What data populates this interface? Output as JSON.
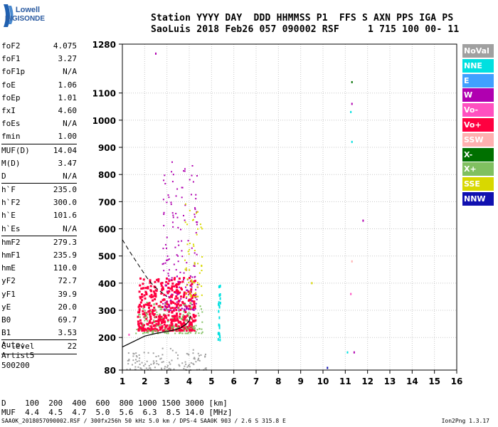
{
  "logo": {
    "line1": "Lowell",
    "line2": "DIGISONDE"
  },
  "header": {
    "line1": "Station YYYY DAY  DDD HHMMSS P1  FFS S AXN PPS IGA PS",
    "line2": "SaoLuis 2018 Feb26 057 090002 RSF     1 715 100 00- 11"
  },
  "params": [
    {
      "group": [
        {
          "name": "foF2",
          "value": "4.075"
        },
        {
          "name": "foF1",
          "value": "3.27"
        },
        {
          "name": "foF1p",
          "value": "N/A"
        },
        {
          "name": "foE",
          "value": "1.06"
        },
        {
          "name": "foEp",
          "value": "1.01"
        },
        {
          "name": "fxI",
          "value": "4.60"
        },
        {
          "name": "foEs",
          "value": "N/A"
        },
        {
          "name": "fmin",
          "value": "1.00"
        }
      ]
    },
    {
      "group": [
        {
          "name": "MUF(D)",
          "value": "14.04"
        },
        {
          "name": "M(D)",
          "value": "3.47"
        },
        {
          "name": "D",
          "value": "N/A"
        }
      ]
    },
    {
      "group": [
        {
          "name": "h`F",
          "value": "235.0"
        },
        {
          "name": "h`F2",
          "value": "300.0"
        },
        {
          "name": "h`E",
          "value": "101.6"
        },
        {
          "name": "h`Es",
          "value": "N/A"
        }
      ]
    },
    {
      "group": [
        {
          "name": "hmF2",
          "value": "279.3"
        },
        {
          "name": "hmF1",
          "value": "235.9"
        },
        {
          "name": "hmE",
          "value": "110.0"
        },
        {
          "name": "yF2",
          "value": "72.7"
        },
        {
          "name": "yF1",
          "value": "39.9"
        },
        {
          "name": "yE",
          "value": "20.0"
        },
        {
          "name": "B0",
          "value": "69.7"
        },
        {
          "name": "B1",
          "value": "3.53"
        }
      ]
    },
    {
      "group": [
        {
          "name": "C-level",
          "value": "22"
        }
      ]
    }
  ],
  "auto": {
    "l1": "Auto:",
    "l2": "Artist5",
    "l3": "500200"
  },
  "legend": [
    {
      "label": "NoVal",
      "color": "#a0a0a0"
    },
    {
      "label": "NNE",
      "color": "#00e0e0"
    },
    {
      "label": "E",
      "color": "#40a0ff"
    },
    {
      "label": "W",
      "color": "#b000b0"
    },
    {
      "label": "Vo-",
      "color": "#ff50c0"
    },
    {
      "label": "Vo+",
      "color": "#ff0040"
    },
    {
      "label": "SSW",
      "color": "#ffb0b0"
    },
    {
      "label": "X-",
      "color": "#007000"
    },
    {
      "label": "X+",
      "color": "#80c060"
    },
    {
      "label": "SSE",
      "color": "#d8d800"
    },
    {
      "label": "NNW",
      "color": "#1010b0"
    }
  ],
  "muf_table": {
    "line1": "D    100  200  400  600  800 1000 1500 3000 [km]",
    "line2": "MUF  4.4  4.5  4.7  5.0  5.6  6.3  8.5 14.0 [MHz]"
  },
  "footer": {
    "left": "SAA0K_2018057090002.RSF / 300fx256h 50 kHz 5.0 km / DPS-4 SAA0K 903 / 2.6 S 315.8 E",
    "right": "Ion2Png 1.3.17"
  },
  "chart_data": {
    "type": "scatter",
    "title": "",
    "xlabel": "",
    "ylabel": "",
    "xlim": [
      1,
      16
    ],
    "ylim": [
      80,
      1280
    ],
    "xticks": [
      1,
      2,
      3,
      4,
      5,
      6,
      7,
      8,
      9,
      10,
      11,
      12,
      13,
      14,
      15,
      16
    ],
    "yticks": [
      80,
      200,
      300,
      400,
      500,
      600,
      700,
      800,
      900,
      1000,
      1100,
      1280
    ],
    "grid": true,
    "profile_line": {
      "x": [
        1.0,
        1.5,
        2.0,
        2.5,
        3.0,
        3.3,
        3.6,
        3.85,
        4.0,
        4.05
      ],
      "y": [
        165,
        185,
        205,
        215,
        222,
        227,
        235,
        248,
        262,
        280
      ]
    },
    "o_trace_dashed": {
      "x": [
        1.0,
        1.3,
        1.7,
        2.1,
        2.4,
        2.7,
        3.0
      ],
      "y": [
        560,
        520,
        470,
        420,
        390,
        370,
        350
      ]
    },
    "clusters": [
      {
        "mode": "Vo+",
        "x_range": [
          1.7,
          4.3
        ],
        "y_range": [
          225,
          420
        ],
        "count": 500
      },
      {
        "mode": "W",
        "x_range": [
          2.8,
          4.4
        ],
        "y_range": [
          300,
          850
        ],
        "count": 180
      },
      {
        "mode": "X+",
        "x_range": [
          1.6,
          4.6
        ],
        "y_range": [
          215,
          330
        ],
        "count": 150
      },
      {
        "mode": "SSE",
        "x_range": [
          3.8,
          4.6
        ],
        "y_range": [
          350,
          700
        ],
        "count": 60
      },
      {
        "mode": "NNE",
        "x_range": [
          5.3,
          5.4
        ],
        "y_range": [
          190,
          410
        ],
        "count": 25
      },
      {
        "mode": "NoVal",
        "x_range": [
          1.2,
          4.8
        ],
        "y_range": [
          80,
          160
        ],
        "count": 120
      }
    ],
    "points": [
      {
        "x": 2.5,
        "y": 1245,
        "mode": "W"
      },
      {
        "x": 11.3,
        "y": 1140,
        "mode": "X-"
      },
      {
        "x": 11.3,
        "y": 1060,
        "mode": "W"
      },
      {
        "x": 11.25,
        "y": 1030,
        "mode": "NNE"
      },
      {
        "x": 11.3,
        "y": 920,
        "mode": "NNE"
      },
      {
        "x": 11.3,
        "y": 480,
        "mode": "SSW"
      },
      {
        "x": 11.25,
        "y": 360,
        "mode": "Vo-"
      },
      {
        "x": 11.8,
        "y": 630,
        "mode": "W"
      },
      {
        "x": 11.1,
        "y": 145,
        "mode": "NNE"
      },
      {
        "x": 11.4,
        "y": 145,
        "mode": "W"
      },
      {
        "x": 10.2,
        "y": 88,
        "mode": "NNW"
      },
      {
        "x": 9.5,
        "y": 400,
        "mode": "SSE"
      },
      {
        "x": 1.3,
        "y": 210,
        "mode": "Vo-"
      }
    ]
  }
}
